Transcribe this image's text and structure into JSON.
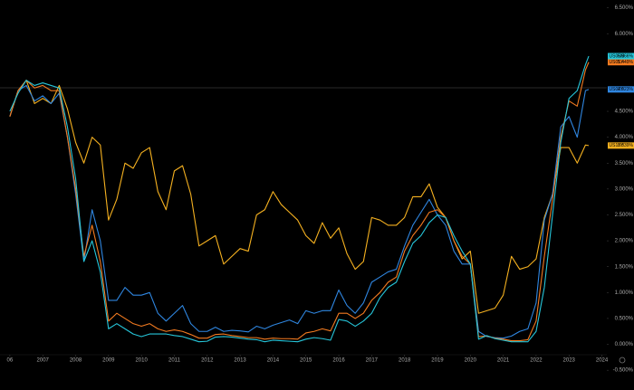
{
  "chart_data": {
    "type": "line",
    "x": [
      2006.0,
      2006.25,
      2006.5,
      2006.75,
      2007.0,
      2007.25,
      2007.5,
      2007.75,
      2008.0,
      2008.25,
      2008.5,
      2008.75,
      2009.0,
      2009.25,
      2009.5,
      2009.75,
      2010.0,
      2010.25,
      2010.5,
      2010.75,
      2011.0,
      2011.25,
      2011.5,
      2011.75,
      2012.0,
      2012.25,
      2012.5,
      2012.75,
      2013.0,
      2013.25,
      2013.5,
      2013.75,
      2014.0,
      2014.25,
      2014.5,
      2014.75,
      2015.0,
      2015.25,
      2015.5,
      2015.75,
      2016.0,
      2016.25,
      2016.5,
      2016.75,
      2017.0,
      2017.25,
      2017.5,
      2017.75,
      2018.0,
      2018.25,
      2018.5,
      2018.75,
      2019.0,
      2019.25,
      2019.5,
      2019.75,
      2020.0,
      2020.25,
      2020.5,
      2020.75,
      2021.0,
      2021.25,
      2021.5,
      2021.75,
      2022.0,
      2022.25,
      2022.5,
      2022.75,
      2023.0,
      2023.25,
      2023.5,
      2023.6
    ],
    "series": [
      {
        "name": "US10Y",
        "color": "#f5b120",
        "last_label": "3.839%",
        "values": [
          4.4,
          4.9,
          5.1,
          4.65,
          4.75,
          4.65,
          5.0,
          4.55,
          3.9,
          3.5,
          4.0,
          3.85,
          2.4,
          2.8,
          3.5,
          3.4,
          3.7,
          3.8,
          2.95,
          2.6,
          3.35,
          3.45,
          2.9,
          1.9,
          2.0,
          2.1,
          1.55,
          1.7,
          1.85,
          1.8,
          2.5,
          2.6,
          2.95,
          2.7,
          2.55,
          2.4,
          2.1,
          1.95,
          2.35,
          2.05,
          2.25,
          1.75,
          1.45,
          1.6,
          2.45,
          2.4,
          2.3,
          2.3,
          2.45,
          2.85,
          2.85,
          3.1,
          2.65,
          2.45,
          2.0,
          1.65,
          1.8,
          0.6,
          0.65,
          0.7,
          0.95,
          1.7,
          1.45,
          1.5,
          1.65,
          2.45,
          2.9,
          3.8,
          3.8,
          3.5,
          3.85,
          3.839
        ]
      },
      {
        "name": "US02Y",
        "color": "#2f86e0",
        "last_label": "4.923%",
        "values": [
          4.4,
          4.9,
          5.0,
          4.7,
          4.8,
          4.65,
          4.85,
          4.0,
          2.9,
          1.6,
          2.6,
          2.0,
          0.85,
          0.85,
          1.1,
          0.95,
          0.95,
          1.0,
          0.6,
          0.45,
          0.6,
          0.75,
          0.4,
          0.25,
          0.25,
          0.33,
          0.25,
          0.27,
          0.26,
          0.24,
          0.35,
          0.3,
          0.37,
          0.42,
          0.47,
          0.4,
          0.65,
          0.6,
          0.65,
          0.65,
          1.05,
          0.75,
          0.6,
          0.8,
          1.2,
          1.3,
          1.4,
          1.45,
          1.9,
          2.3,
          2.55,
          2.8,
          2.5,
          2.3,
          1.8,
          1.55,
          1.55,
          0.25,
          0.15,
          0.13,
          0.12,
          0.16,
          0.25,
          0.3,
          0.8,
          2.4,
          2.9,
          4.2,
          4.4,
          4.0,
          4.9,
          4.923
        ]
      },
      {
        "name": "US01Y",
        "color": "#f47b20",
        "last_label": "5.449%",
        "values": [
          4.4,
          4.9,
          5.1,
          4.95,
          5.0,
          4.9,
          4.9,
          4.0,
          3.0,
          1.7,
          2.3,
          1.6,
          0.45,
          0.6,
          0.5,
          0.4,
          0.35,
          0.4,
          0.3,
          0.25,
          0.28,
          0.25,
          0.19,
          0.12,
          0.12,
          0.19,
          0.2,
          0.17,
          0.15,
          0.13,
          0.13,
          0.1,
          0.12,
          0.11,
          0.11,
          0.1,
          0.22,
          0.25,
          0.3,
          0.26,
          0.6,
          0.6,
          0.5,
          0.6,
          0.85,
          1.0,
          1.2,
          1.3,
          1.8,
          2.1,
          2.3,
          2.55,
          2.6,
          2.45,
          2.0,
          1.7,
          1.55,
          0.15,
          0.16,
          0.12,
          0.1,
          0.07,
          0.07,
          0.09,
          0.45,
          1.7,
          2.8,
          4.0,
          4.7,
          4.6,
          5.3,
          5.449
        ]
      },
      {
        "name": "US06M",
        "color": "#26c6da",
        "last_label": "5.566%",
        "values": [
          4.5,
          4.85,
          5.1,
          5.0,
          5.05,
          5.0,
          4.95,
          4.2,
          3.2,
          1.6,
          2.0,
          1.4,
          0.3,
          0.4,
          0.3,
          0.2,
          0.15,
          0.2,
          0.2,
          0.2,
          0.17,
          0.15,
          0.1,
          0.05,
          0.06,
          0.14,
          0.15,
          0.14,
          0.12,
          0.1,
          0.09,
          0.05,
          0.08,
          0.07,
          0.06,
          0.05,
          0.1,
          0.13,
          0.11,
          0.08,
          0.48,
          0.45,
          0.35,
          0.45,
          0.6,
          0.9,
          1.1,
          1.2,
          1.6,
          1.95,
          2.1,
          2.35,
          2.5,
          2.45,
          2.1,
          1.8,
          1.55,
          0.1,
          0.17,
          0.11,
          0.08,
          0.05,
          0.05,
          0.05,
          0.25,
          1.1,
          2.5,
          3.9,
          4.75,
          4.9,
          5.4,
          5.566
        ]
      }
    ],
    "xlim": [
      2005.7,
      2024.15
    ],
    "xticks": [
      {
        "value": 2006,
        "label": "06"
      },
      2007,
      2008,
      2009,
      2010,
      2011,
      2012,
      2013,
      2014,
      2015,
      2016,
      2017,
      2018,
      2019,
      2020,
      2021,
      2022,
      2023,
      2024
    ],
    "ylim": [
      -0.2,
      6.65
    ],
    "yticks": [
      {
        "value": 6.5,
        "label": "6.500%"
      },
      {
        "value": 6.0,
        "label": "6.000%"
      },
      {
        "value": 4.5,
        "label": "4.500%"
      },
      {
        "value": 4.0,
        "label": "4.000%"
      },
      {
        "value": 3.5,
        "label": "3.500%"
      },
      {
        "value": 3.0,
        "label": "3.000%"
      },
      {
        "value": 2.5,
        "label": "2.500%"
      },
      {
        "value": 2.0,
        "label": "2.000%"
      },
      {
        "value": 1.5,
        "label": "1.500%"
      },
      {
        "value": 1.0,
        "label": "1.000%"
      },
      {
        "value": 0.5,
        "label": "0.500%"
      },
      {
        "value": 0.0,
        "label": "0.000%"
      },
      {
        "value": -0.5,
        "label": "-0.500%"
      }
    ]
  }
}
